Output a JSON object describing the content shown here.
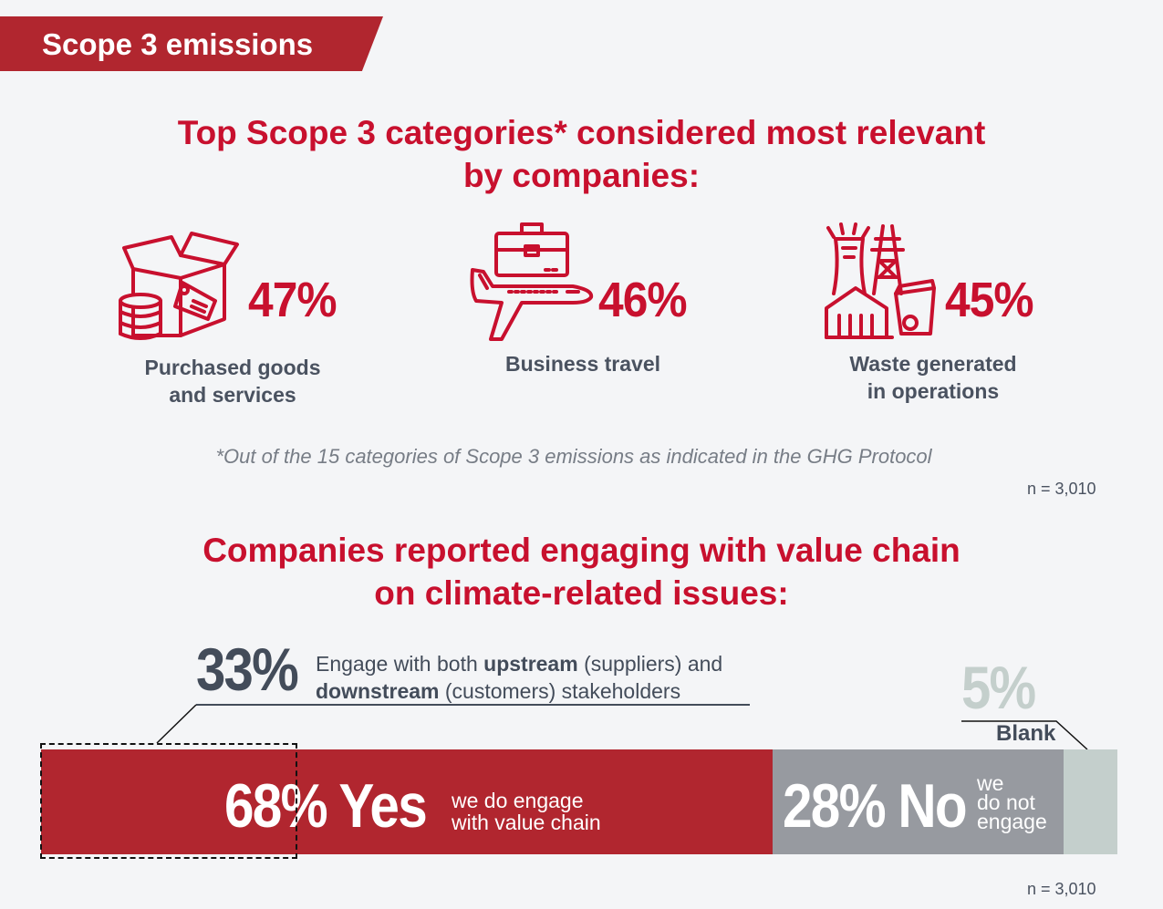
{
  "header": {
    "title": "Scope 3 emissions"
  },
  "top_categories": {
    "title_line1": "Top Scope 3 categories* considered most relevant",
    "title_line2": "by companies:",
    "items": [
      {
        "icon": "boxes-coins-tag-icon",
        "percent": "47%",
        "label_line1": "Purchased goods",
        "label_line2": "and services"
      },
      {
        "icon": "plane-briefcase-icon",
        "percent": "46%",
        "label_line1": "Business travel",
        "label_line2": ""
      },
      {
        "icon": "factory-pylon-waste-icon",
        "percent": "45%",
        "label_line1": "Waste generated",
        "label_line2": "in operations"
      }
    ],
    "footnote": "*Out of the 15 categories of Scope 3 emissions as indicated in the GHG Protocol",
    "sample": "n = 3,010"
  },
  "engagement": {
    "title_line1": "Companies reported engaging with value chain",
    "title_line2": "on climate-related issues:",
    "both": {
      "percent": "33%",
      "line1_pre": "Engage with both ",
      "line1_bold": "upstream",
      "line1_post": " (suppliers) and",
      "line2_bold": "downstream",
      "line2_post": " (customers) stakeholders"
    },
    "blank": {
      "percent": "5%",
      "label": "Blank"
    },
    "yes": {
      "big": "68% Yes",
      "line1": "we do engage",
      "line2": "with value chain",
      "value": 68
    },
    "no": {
      "big": "28% No",
      "line1": "we",
      "line2": "do not",
      "line3": "engage",
      "value": 28
    },
    "blank_value": 5,
    "sample": "n = 3,010"
  },
  "colors": {
    "red": "#c8102e",
    "bar_red": "#b1262f",
    "gray": "#979aa0",
    "blank": "#c4cfcc",
    "dark": "#434c5a"
  }
}
